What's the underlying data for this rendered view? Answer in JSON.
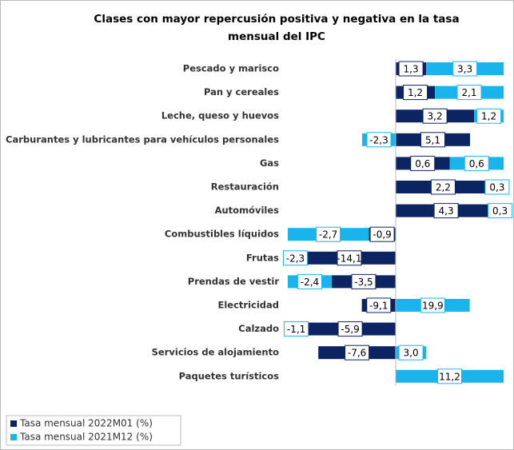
{
  "chart_data": {
    "type": "bar",
    "orientation": "horizontal",
    "stacked": true,
    "title": "Clases con mayor repercusión positiva y negativa en la tasa mensual del IPC",
    "categories": [
      "Pescado y marisco",
      "Pan y cereales",
      "Leche, queso y huevos",
      "Carburantes y lubricantes para vehículos personales",
      "Gas",
      "Restauración",
      "Automóviles",
      "Combustibles líquidos",
      "Frutas",
      "Prendas de vestir",
      "Electricidad",
      "Calzado",
      "Servicios de alojamiento",
      "Paquetes turísticos"
    ],
    "series": [
      {
        "name": "Tasa mensual 2022M01 (%)",
        "color": "#0d2463",
        "values": [
          1.3,
          1.2,
          3.2,
          5.1,
          0.6,
          2.2,
          4.3,
          -0.9,
          -14.1,
          -3.5,
          -9.1,
          -5.9,
          -7.6,
          null
        ],
        "value_labels": [
          "1,3",
          "1,2",
          "3,2",
          "5,1",
          "0,6",
          "2,2",
          "4,3",
          "-0,9",
          "-14,1",
          "-3,5",
          "-9,1",
          "-5,9",
          "-7,6",
          null
        ]
      },
      {
        "name": "Tasa mensual 2021M12 (%)",
        "color": "#1ab4ec",
        "values": [
          3.3,
          2.1,
          1.2,
          -2.3,
          0.6,
          0.3,
          0.3,
          -2.7,
          -2.3,
          -2.4,
          19.9,
          -1.1,
          3.0,
          11.2
        ],
        "value_labels": [
          "3,3",
          "2,1",
          "1,2",
          "-2,3",
          "0,6",
          "0,3",
          "0,3",
          "-2,7",
          "-2,3",
          "-2,4",
          "19,9",
          "-1,1",
          "3,0",
          "11,2"
        ]
      }
    ]
  }
}
